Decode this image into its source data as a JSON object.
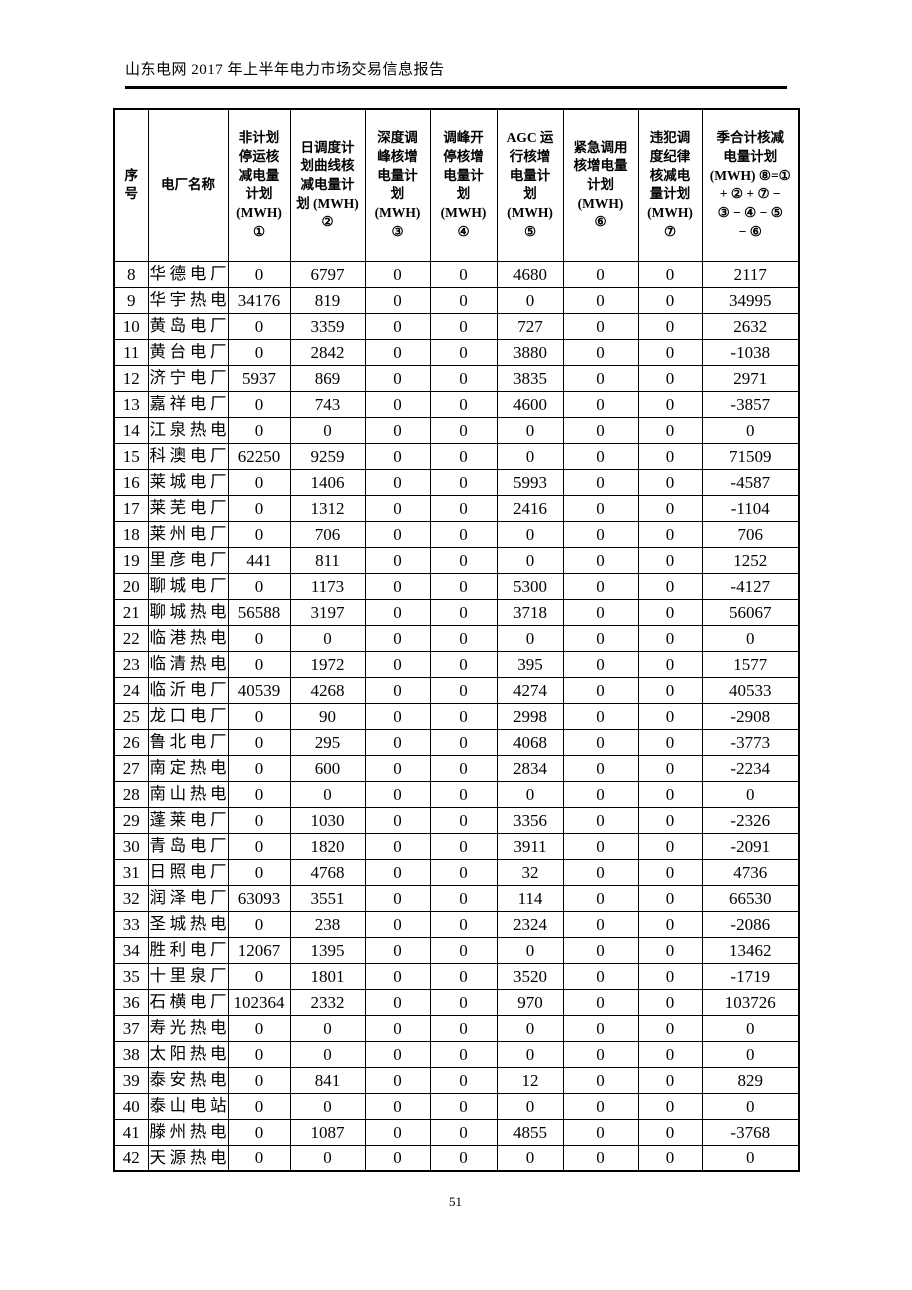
{
  "header": {
    "title": "山东电网 2017 年上半年电力市场交易信息报告"
  },
  "footer": {
    "page_number": "51"
  },
  "table": {
    "columns": [
      {
        "label": "序\n号"
      },
      {
        "label": "电厂名称"
      },
      {
        "label": "非计划\n停运核\n减电量\n计划\n(MWH)\n①"
      },
      {
        "label": "日调度计\n划曲线核\n减电量计\n划 (MWH)\n②"
      },
      {
        "label": "深度调\n峰核增\n电量计\n划\n(MWH)\n③"
      },
      {
        "label": "调峰开\n停核增\n电量计\n划\n(MWH)\n④"
      },
      {
        "label": "AGC 运\n行核增\n电量计\n划\n(MWH)\n⑤"
      },
      {
        "label": "紧急调用\n核增电量\n计划\n(MWH)\n⑥"
      },
      {
        "label": "违犯调\n度纪律\n核减电\n量计划\n(MWH)\n⑦"
      },
      {
        "label": "季合计核减\n电量计划\n(MWH) ⑧=①\n+ ② + ⑦ −\n③ − ④ − ⑤\n− ⑥"
      }
    ],
    "rows": [
      [
        "8",
        "华德电厂",
        "0",
        "6797",
        "0",
        "0",
        "4680",
        "0",
        "0",
        "2117"
      ],
      [
        "9",
        "华宇热电",
        "34176",
        "819",
        "0",
        "0",
        "0",
        "0",
        "0",
        "34995"
      ],
      [
        "10",
        "黄岛电厂",
        "0",
        "3359",
        "0",
        "0",
        "727",
        "0",
        "0",
        "2632"
      ],
      [
        "11",
        "黄台电厂",
        "0",
        "2842",
        "0",
        "0",
        "3880",
        "0",
        "0",
        "-1038"
      ],
      [
        "12",
        "济宁电厂",
        "5937",
        "869",
        "0",
        "0",
        "3835",
        "0",
        "0",
        "2971"
      ],
      [
        "13",
        "嘉祥电厂",
        "0",
        "743",
        "0",
        "0",
        "4600",
        "0",
        "0",
        "-3857"
      ],
      [
        "14",
        "江泉热电",
        "0",
        "0",
        "0",
        "0",
        "0",
        "0",
        "0",
        "0"
      ],
      [
        "15",
        "科澳电厂",
        "62250",
        "9259",
        "0",
        "0",
        "0",
        "0",
        "0",
        "71509"
      ],
      [
        "16",
        "莱城电厂",
        "0",
        "1406",
        "0",
        "0",
        "5993",
        "0",
        "0",
        "-4587"
      ],
      [
        "17",
        "莱芜电厂",
        "0",
        "1312",
        "0",
        "0",
        "2416",
        "0",
        "0",
        "-1104"
      ],
      [
        "18",
        "莱州电厂",
        "0",
        "706",
        "0",
        "0",
        "0",
        "0",
        "0",
        "706"
      ],
      [
        "19",
        "里彦电厂",
        "441",
        "811",
        "0",
        "0",
        "0",
        "0",
        "0",
        "1252"
      ],
      [
        "20",
        "聊城电厂",
        "0",
        "1173",
        "0",
        "0",
        "5300",
        "0",
        "0",
        "-4127"
      ],
      [
        "21",
        "聊城热电",
        "56588",
        "3197",
        "0",
        "0",
        "3718",
        "0",
        "0",
        "56067"
      ],
      [
        "22",
        "临港热电",
        "0",
        "0",
        "0",
        "0",
        "0",
        "0",
        "0",
        "0"
      ],
      [
        "23",
        "临清热电",
        "0",
        "1972",
        "0",
        "0",
        "395",
        "0",
        "0",
        "1577"
      ],
      [
        "24",
        "临沂电厂",
        "40539",
        "4268",
        "0",
        "0",
        "4274",
        "0",
        "0",
        "40533"
      ],
      [
        "25",
        "龙口电厂",
        "0",
        "90",
        "0",
        "0",
        "2998",
        "0",
        "0",
        "-2908"
      ],
      [
        "26",
        "鲁北电厂",
        "0",
        "295",
        "0",
        "0",
        "4068",
        "0",
        "0",
        "-3773"
      ],
      [
        "27",
        "南定热电",
        "0",
        "600",
        "0",
        "0",
        "2834",
        "0",
        "0",
        "-2234"
      ],
      [
        "28",
        "南山热电",
        "0",
        "0",
        "0",
        "0",
        "0",
        "0",
        "0",
        "0"
      ],
      [
        "29",
        "蓬莱电厂",
        "0",
        "1030",
        "0",
        "0",
        "3356",
        "0",
        "0",
        "-2326"
      ],
      [
        "30",
        "青岛电厂",
        "0",
        "1820",
        "0",
        "0",
        "3911",
        "0",
        "0",
        "-2091"
      ],
      [
        "31",
        "日照电厂",
        "0",
        "4768",
        "0",
        "0",
        "32",
        "0",
        "0",
        "4736"
      ],
      [
        "32",
        "润泽电厂",
        "63093",
        "3551",
        "0",
        "0",
        "114",
        "0",
        "0",
        "66530"
      ],
      [
        "33",
        "圣城热电",
        "0",
        "238",
        "0",
        "0",
        "2324",
        "0",
        "0",
        "-2086"
      ],
      [
        "34",
        "胜利电厂",
        "12067",
        "1395",
        "0",
        "0",
        "0",
        "0",
        "0",
        "13462"
      ],
      [
        "35",
        "十里泉厂",
        "0",
        "1801",
        "0",
        "0",
        "3520",
        "0",
        "0",
        "-1719"
      ],
      [
        "36",
        "石横电厂",
        "102364",
        "2332",
        "0",
        "0",
        "970",
        "0",
        "0",
        "103726"
      ],
      [
        "37",
        "寿光热电",
        "0",
        "0",
        "0",
        "0",
        "0",
        "0",
        "0",
        "0"
      ],
      [
        "38",
        "太阳热电",
        "0",
        "0",
        "0",
        "0",
        "0",
        "0",
        "0",
        "0"
      ],
      [
        "39",
        "泰安热电",
        "0",
        "841",
        "0",
        "0",
        "12",
        "0",
        "0",
        "829"
      ],
      [
        "40",
        "泰山电站",
        "0",
        "0",
        "0",
        "0",
        "0",
        "0",
        "0",
        "0"
      ],
      [
        "41",
        "滕州热电",
        "0",
        "1087",
        "0",
        "0",
        "4855",
        "0",
        "0",
        "-3768"
      ],
      [
        "42",
        "天源热电",
        "0",
        "0",
        "0",
        "0",
        "0",
        "0",
        "0",
        "0"
      ]
    ]
  }
}
